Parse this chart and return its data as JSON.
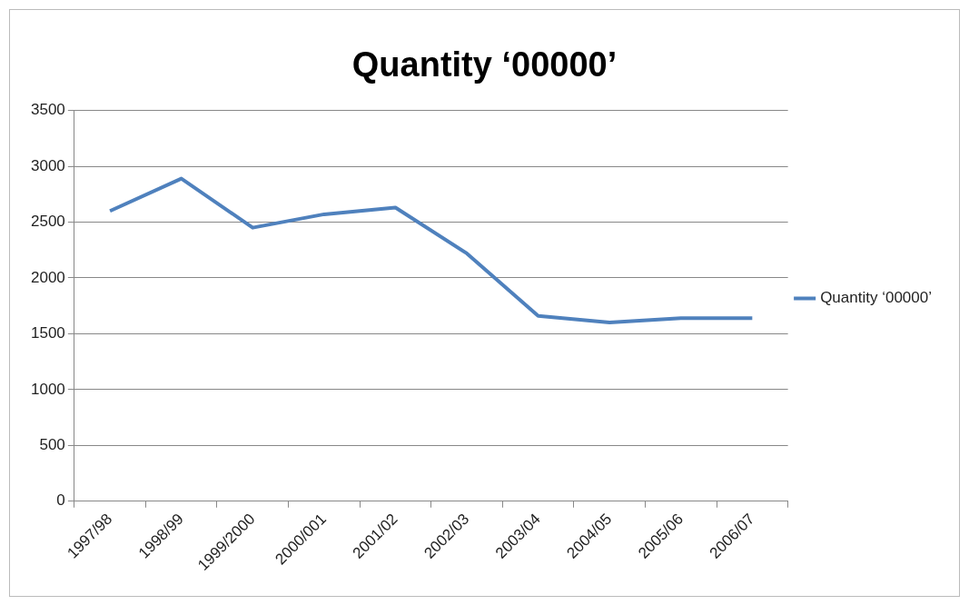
{
  "chart_data": {
    "type": "line",
    "title": "Quantity ‘00000’",
    "categories": [
      "1997/98",
      "1998/99",
      "1999/2000",
      "2000/001",
      "2001/02",
      "2002/03",
      "2003/04",
      "2004/05",
      "2005/06",
      "2006/07"
    ],
    "series": [
      {
        "name": "Quantity ‘00000’",
        "color": "#4f81bd",
        "values": [
          2600,
          2890,
          2450,
          2570,
          2630,
          2220,
          1660,
          1600,
          1640,
          1640
        ]
      }
    ],
    "ylim": [
      0,
      3500
    ],
    "yticks": [
      0,
      500,
      1000,
      1500,
      2000,
      2500,
      3000,
      3500
    ],
    "grid": "y",
    "legend": "right",
    "marker": "none"
  }
}
